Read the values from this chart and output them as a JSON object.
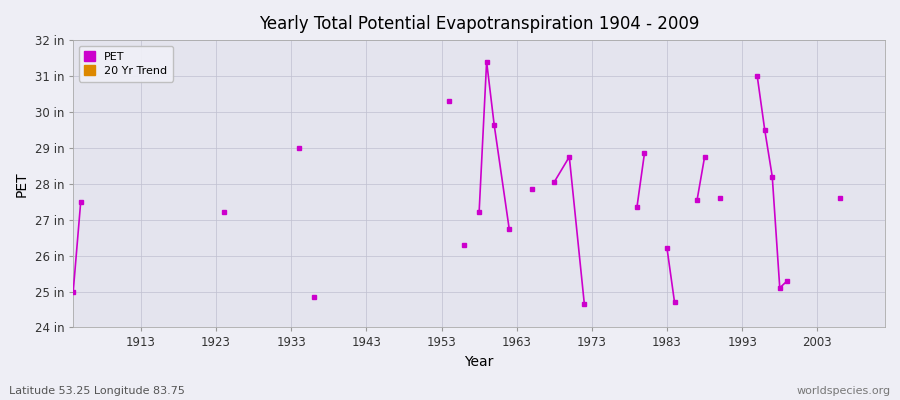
{
  "title": "Yearly Total Potential Evapotranspiration 1904 - 2009",
  "xlabel": "Year",
  "ylabel": "PET",
  "subtitle_left": "Latitude 53.25 Longitude 83.75",
  "subtitle_right": "worldspecies.org",
  "background_color": "#eeeef5",
  "plot_bg_color": "#e4e4ee",
  "ylim": [
    24,
    32
  ],
  "yticks": [
    24,
    25,
    26,
    27,
    28,
    29,
    30,
    31,
    32
  ],
  "ytick_labels": [
    "24 in",
    "25 in",
    "26 in",
    "27 in",
    "28 in",
    "29 in",
    "30 in",
    "31 in",
    "32 in"
  ],
  "xlim": [
    1904,
    2012
  ],
  "xticks": [
    1913,
    1923,
    1933,
    1943,
    1953,
    1963,
    1973,
    1983,
    1993,
    2003
  ],
  "pet_color": "#cc00cc",
  "trend_color": "#dd8800",
  "pet_segments": [
    {
      "x": [
        1904,
        1905
      ],
      "y": [
        25.0,
        27.5
      ]
    },
    {
      "x": [
        1924
      ],
      "y": [
        27.2
      ]
    },
    {
      "x": [
        1934
      ],
      "y": [
        29.0
      ]
    },
    {
      "x": [
        1936
      ],
      "y": [
        24.85
      ]
    },
    {
      "x": [
        1954
      ],
      "y": [
        30.3
      ]
    },
    {
      "x": [
        1956
      ],
      "y": [
        26.3
      ]
    },
    {
      "x": [
        1958,
        1959,
        1960,
        1962
      ],
      "y": [
        27.2,
        31.4,
        29.65,
        26.75
      ]
    },
    {
      "x": [
        1965
      ],
      "y": [
        27.85
      ]
    },
    {
      "x": [
        1968,
        1970,
        1972
      ],
      "y": [
        28.05,
        28.75,
        24.65
      ]
    },
    {
      "x": [
        1979,
        1980
      ],
      "y": [
        27.35,
        28.85
      ]
    },
    {
      "x": [
        1983,
        1984
      ],
      "y": [
        26.2,
        24.7
      ]
    },
    {
      "x": [
        1987,
        1988
      ],
      "y": [
        27.55,
        28.75
      ]
    },
    {
      "x": [
        1990
      ],
      "y": [
        27.6
      ]
    },
    {
      "x": [
        1995,
        1996,
        1997,
        1998,
        1999
      ],
      "y": [
        31.0,
        29.5,
        28.2,
        25.1,
        25.3
      ]
    },
    {
      "x": [
        2006
      ],
      "y": [
        27.6
      ]
    }
  ]
}
